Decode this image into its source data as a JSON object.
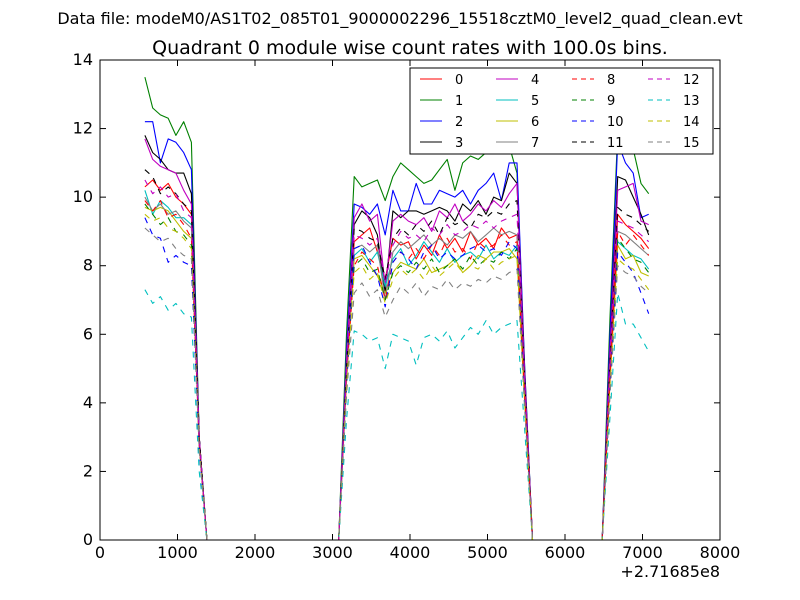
{
  "chart_data": {
    "type": "line",
    "suptitle": "Data file: modeM0/AS1T02_085T01_9000002296_15518cztM0_level2_quad_clean.evt",
    "title": "Quadrant 0 module wise count rates with 100.0s bins.",
    "xlabel": "",
    "ylabel": "",
    "x_offset_label": "+2.71685e8",
    "xlim": [
      0,
      8000
    ],
    "ylim": [
      0,
      14
    ],
    "xticks": [
      0,
      1000,
      2000,
      3000,
      4000,
      5000,
      6000,
      7000,
      8000
    ],
    "yticks": [
      0,
      2,
      4,
      6,
      8,
      10,
      12,
      14
    ],
    "xtick_labels": [
      "0",
      "1000",
      "2000",
      "3000",
      "4000",
      "5000",
      "6000",
      "7000",
      "8000"
    ],
    "ytick_labels": [
      "0",
      "2",
      "4",
      "6",
      "8",
      "10",
      "12",
      "14"
    ],
    "legend_position": "upper-right",
    "x": [
      580,
      680,
      780,
      880,
      980,
      1080,
      1180,
      1280,
      1380,
      3080,
      3180,
      3280,
      3380,
      3480,
      3580,
      3680,
      3780,
      3880,
      3980,
      4080,
      4180,
      4280,
      4380,
      4480,
      4580,
      4680,
      4780,
      4880,
      4980,
      5080,
      5180,
      5280,
      5380,
      5480,
      5580,
      6480,
      6580,
      6680,
      6780,
      6880,
      6980,
      7080
    ],
    "series": [
      {
        "name": "0",
        "color": "#ff0000",
        "dash": "solid",
        "values": [
          10.3,
          10.5,
          10.2,
          10.4,
          10.0,
          9.8,
          9.5,
          3.0,
          0,
          0,
          5.0,
          8.7,
          8.9,
          9.1,
          8.4,
          7.6,
          8.8,
          8.6,
          8.7,
          8.2,
          8.6,
          8.3,
          8.9,
          8.5,
          8.8,
          8.4,
          9.0,
          8.6,
          8.8,
          8.5,
          9.1,
          8.8,
          8.9,
          4.5,
          0,
          0,
          5.0,
          9.5,
          9.2,
          9.0,
          8.8,
          8.5
        ]
      },
      {
        "name": "1",
        "color": "#008000",
        "dash": "solid",
        "values": [
          13.5,
          12.6,
          12.4,
          12.3,
          11.8,
          12.2,
          11.6,
          3.0,
          0,
          0,
          6.0,
          10.6,
          10.3,
          10.4,
          10.5,
          9.9,
          10.6,
          11.0,
          10.8,
          10.6,
          10.4,
          10.5,
          10.8,
          11.1,
          10.2,
          11.0,
          11.2,
          11.1,
          11.3,
          11.4,
          11.4,
          11.5,
          10.7,
          5.0,
          0,
          0,
          6.5,
          11.9,
          11.8,
          11.4,
          10.4,
          10.1
        ]
      },
      {
        "name": "2",
        "color": "#0000ff",
        "dash": "solid",
        "values": [
          12.2,
          12.2,
          11.0,
          11.7,
          11.6,
          11.3,
          10.8,
          3.0,
          0,
          0,
          5.5,
          9.8,
          9.7,
          9.5,
          9.8,
          8.9,
          10.2,
          9.6,
          9.6,
          10.4,
          9.8,
          9.8,
          10.2,
          10.1,
          10.0,
          10.2,
          9.8,
          10.2,
          10.4,
          10.7,
          9.9,
          11.0,
          11.0,
          5.0,
          0,
          0,
          6.0,
          11.6,
          11.0,
          10.7,
          9.4,
          9.5
        ]
      },
      {
        "name": "3",
        "color": "#000000",
        "dash": "solid",
        "values": [
          11.8,
          11.3,
          11.1,
          10.8,
          10.7,
          10.7,
          10.1,
          3.0,
          0,
          0,
          5.0,
          9.2,
          9.6,
          9.4,
          8.9,
          7.2,
          9.6,
          9.4,
          9.6,
          9.6,
          9.5,
          9.6,
          9.7,
          9.6,
          9.3,
          9.8,
          9.6,
          9.9,
          9.5,
          10.0,
          9.9,
          10.7,
          10.4,
          4.8,
          0,
          0,
          5.5,
          10.6,
          10.5,
          10.0,
          9.5,
          8.9
        ]
      },
      {
        "name": "4",
        "color": "#c000c0",
        "dash": "solid",
        "values": [
          11.7,
          11.1,
          10.9,
          10.8,
          10.7,
          10.2,
          9.8,
          3.0,
          0,
          0,
          5.2,
          9.4,
          9.8,
          9.3,
          9.5,
          7.4,
          9.3,
          9.5,
          9.3,
          9.2,
          9.4,
          9.0,
          9.6,
          9.4,
          9.8,
          9.3,
          9.5,
          9.8,
          9.6,
          9.9,
          9.7,
          10.1,
          10.4,
          4.8,
          0,
          0,
          5.5,
          10.2,
          10.3,
          10.4,
          9.3,
          9.2
        ]
      },
      {
        "name": "5",
        "color": "#00bfbf",
        "dash": "solid",
        "values": [
          10.2,
          9.5,
          9.9,
          9.7,
          9.4,
          9.4,
          9.2,
          2.8,
          0,
          0,
          4.8,
          8.3,
          8.5,
          8.1,
          8.4,
          7.4,
          8.2,
          8.5,
          8.0,
          8.3,
          8.7,
          8.4,
          8.1,
          8.5,
          8.1,
          8.3,
          8.4,
          8.2,
          8.6,
          8.2,
          8.4,
          8.3,
          8.6,
          4.2,
          0,
          0,
          4.8,
          8.7,
          8.5,
          8.3,
          8.2,
          7.9
        ]
      },
      {
        "name": "6",
        "color": "#bfbf00",
        "dash": "solid",
        "values": [
          9.7,
          9.6,
          9.7,
          9.6,
          9.3,
          9.0,
          8.8,
          2.8,
          0,
          0,
          4.6,
          8.2,
          8.3,
          8.0,
          7.7,
          7.2,
          7.8,
          8.1,
          8.0,
          7.9,
          8.2,
          7.8,
          7.9,
          8.0,
          8.2,
          7.8,
          8.0,
          8.3,
          8.2,
          8.4,
          8.4,
          8.5,
          8.2,
          4.0,
          0,
          0,
          4.6,
          8.6,
          8.2,
          8.3,
          7.8,
          7.7
        ]
      },
      {
        "name": "7",
        "color": "#808080",
        "dash": "solid",
        "values": [
          10.0,
          9.6,
          9.8,
          9.5,
          9.6,
          9.3,
          9.1,
          2.8,
          0,
          0,
          5.0,
          8.5,
          8.6,
          8.4,
          8.6,
          7.0,
          8.4,
          8.7,
          8.5,
          8.7,
          8.9,
          8.6,
          8.8,
          8.6,
          8.9,
          8.8,
          9.0,
          8.7,
          8.9,
          9.1,
          8.9,
          9.0,
          8.9,
          4.3,
          0,
          0,
          5.0,
          9.0,
          8.9,
          8.7,
          8.5,
          8.3
        ]
      },
      {
        "name": "8",
        "color": "#ff0000",
        "dash": "dashed",
        "values": [
          9.9,
          9.6,
          9.9,
          9.4,
          9.5,
          9.2,
          8.8,
          2.8,
          0,
          0,
          4.8,
          8.0,
          8.4,
          8.2,
          8.0,
          7.0,
          8.1,
          8.4,
          8.2,
          8.5,
          8.2,
          8.6,
          8.3,
          8.8,
          8.4,
          8.5,
          8.2,
          8.7,
          8.5,
          8.6,
          8.9,
          8.6,
          8.7,
          4.2,
          0,
          0,
          4.8,
          9.0,
          8.6,
          8.9,
          8.6,
          8.3
        ]
      },
      {
        "name": "9",
        "color": "#008000",
        "dash": "dashed",
        "values": [
          9.8,
          9.5,
          9.2,
          9.4,
          9.0,
          8.9,
          8.6,
          2.7,
          0,
          0,
          4.6,
          8.0,
          8.2,
          7.8,
          7.9,
          7.0,
          7.8,
          8.0,
          7.8,
          8.1,
          7.9,
          8.2,
          7.8,
          8.0,
          8.2,
          7.9,
          8.3,
          8.0,
          8.2,
          8.1,
          8.4,
          8.2,
          8.5,
          4.1,
          0,
          0,
          4.6,
          8.8,
          8.5,
          8.2,
          8.1,
          7.8
        ]
      },
      {
        "name": "10",
        "color": "#0000ff",
        "dash": "dashed",
        "values": [
          9.4,
          8.9,
          8.8,
          8.1,
          8.3,
          8.1,
          8.0,
          2.6,
          0,
          0,
          4.4,
          8.5,
          8.6,
          8.1,
          7.7,
          6.8,
          8.1,
          8.4,
          8.2,
          7.9,
          8.4,
          8.6,
          8.2,
          8.4,
          8.2,
          8.3,
          8.5,
          8.6,
          8.4,
          8.5,
          8.3,
          8.7,
          8.5,
          4.0,
          0,
          0,
          4.4,
          8.4,
          8.1,
          7.8,
          7.2,
          6.6
        ]
      },
      {
        "name": "11",
        "color": "#000000",
        "dash": "dashed",
        "values": [
          10.8,
          10.6,
          10.1,
          10.3,
          10.1,
          9.8,
          9.6,
          3.0,
          0,
          0,
          5.0,
          9.1,
          9.0,
          8.8,
          8.7,
          7.6,
          8.8,
          9.1,
          8.9,
          9.2,
          9.0,
          9.3,
          8.9,
          9.4,
          9.2,
          9.3,
          9.1,
          9.5,
          9.4,
          9.6,
          9.5,
          9.8,
          9.9,
          4.7,
          0,
          0,
          5.2,
          9.7,
          9.5,
          9.4,
          9.2,
          9.0
        ]
      },
      {
        "name": "12",
        "color": "#c000c0",
        "dash": "dashed",
        "values": [
          10.5,
          10.1,
          10.3,
          10.0,
          10.1,
          9.6,
          9.4,
          2.9,
          0,
          0,
          4.9,
          8.9,
          8.8,
          8.6,
          8.8,
          7.5,
          8.6,
          9.0,
          8.8,
          8.9,
          8.7,
          9.1,
          8.9,
          9.2,
          8.9,
          9.0,
          9.2,
          9.1,
          9.3,
          9.1,
          9.3,
          9.4,
          9.5,
          4.6,
          0,
          0,
          5.0,
          9.3,
          9.2,
          9.1,
          8.9,
          8.7
        ]
      },
      {
        "name": "13",
        "color": "#00bfbf",
        "dash": "dashed",
        "values": [
          7.3,
          6.9,
          7.1,
          6.7,
          6.9,
          6.6,
          6.5,
          2.0,
          0,
          0,
          3.5,
          6.1,
          6.0,
          5.8,
          5.9,
          5.0,
          6.0,
          5.9,
          5.8,
          5.1,
          5.9,
          6.0,
          5.8,
          6.1,
          5.6,
          5.9,
          6.2,
          6.0,
          6.4,
          6.0,
          6.2,
          6.3,
          6.4,
          3.2,
          0,
          0,
          3.6,
          7.2,
          6.3,
          6.3,
          5.9,
          5.5
        ]
      },
      {
        "name": "14",
        "color": "#bfbf00",
        "dash": "dashed",
        "values": [
          9.5,
          9.3,
          9.4,
          9.1,
          9.0,
          8.8,
          8.5,
          2.7,
          0,
          0,
          4.5,
          7.8,
          8.0,
          7.6,
          7.8,
          6.9,
          7.6,
          7.9,
          7.7,
          7.9,
          7.6,
          8.0,
          7.7,
          7.9,
          8.1,
          7.8,
          8.0,
          7.9,
          8.2,
          7.9,
          8.1,
          8.2,
          8.3,
          4.0,
          0,
          0,
          4.5,
          8.2,
          8.0,
          7.9,
          7.6,
          7.3
        ]
      },
      {
        "name": "15",
        "color": "#808080",
        "dash": "dashed",
        "values": [
          9.1,
          8.9,
          8.7,
          8.8,
          8.5,
          8.3,
          8.2,
          2.6,
          0,
          0,
          4.2,
          7.2,
          7.5,
          7.1,
          7.3,
          6.5,
          7.0,
          7.4,
          7.2,
          7.5,
          7.1,
          7.4,
          7.3,
          7.6,
          7.3,
          7.5,
          7.4,
          7.6,
          7.5,
          7.7,
          7.6,
          7.8,
          7.9,
          3.8,
          0,
          0,
          4.2,
          8.0,
          7.8,
          7.7,
          7.4,
          7.2
        ]
      }
    ]
  }
}
